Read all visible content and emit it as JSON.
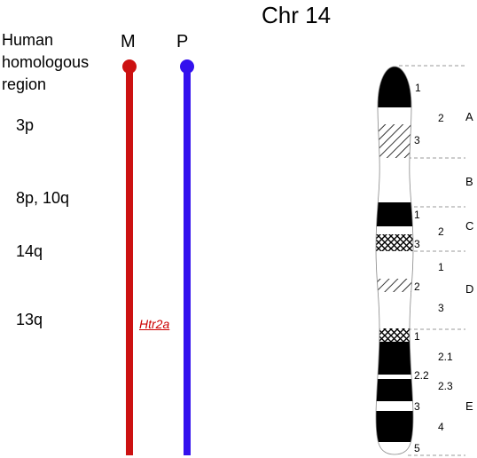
{
  "title": "Chr 14",
  "homology_header": [
    "Human",
    "homologous",
    "region"
  ],
  "regions": [
    {
      "label": "3p"
    },
    {
      "label": "8p, 10q"
    },
    {
      "label": "14q"
    },
    {
      "label": "13q"
    }
  ],
  "strands": {
    "maternal": {
      "label": "M",
      "color": "#cc1111"
    },
    "paternal": {
      "label": "P",
      "color": "#3311ee"
    }
  },
  "gene": {
    "label": "Htr2a",
    "color": "#cc0000"
  },
  "ideogram": {
    "bands": {
      "A": [
        "1",
        "2",
        "3"
      ],
      "B": [],
      "C": [
        "1",
        "2",
        "3"
      ],
      "D": [
        "1",
        "2",
        "3"
      ],
      "E": [
        "1",
        "2.1",
        "2.2",
        "2.3",
        "3",
        "4",
        "5"
      ]
    },
    "band_letters": [
      "A",
      "B",
      "C",
      "D",
      "E"
    ]
  }
}
